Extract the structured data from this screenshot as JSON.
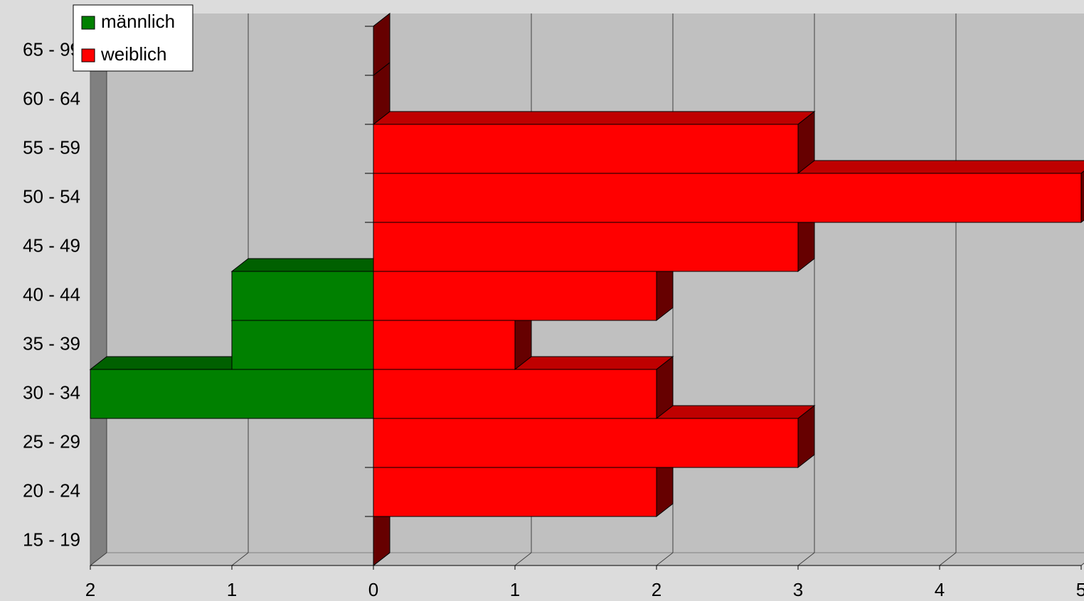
{
  "chart_data": {
    "type": "pyramid",
    "categories": [
      "15 - 19",
      "20 - 24",
      "25 - 29",
      "30 - 34",
      "35 - 39",
      "40 - 44",
      "45 - 49",
      "50 - 54",
      "55 - 59",
      "60 - 64",
      "65 - 99"
    ],
    "series": [
      {
        "name": "männlich",
        "color": "#008000",
        "values": [
          0,
          0,
          0,
          2,
          1,
          1,
          0,
          0,
          0,
          0,
          0
        ]
      },
      {
        "name": "weiblich",
        "color": "#ff0000",
        "values": [
          0,
          2,
          3,
          2,
          1,
          2,
          3,
          5,
          3,
          0,
          0
        ]
      }
    ],
    "xlim": [
      -2,
      5
    ],
    "xticks": [
      {
        "value": -2,
        "label": "2"
      },
      {
        "value": -1,
        "label": "1"
      },
      0,
      1,
      2,
      3,
      4,
      5
    ],
    "grid": true,
    "legend": "top-left"
  }
}
